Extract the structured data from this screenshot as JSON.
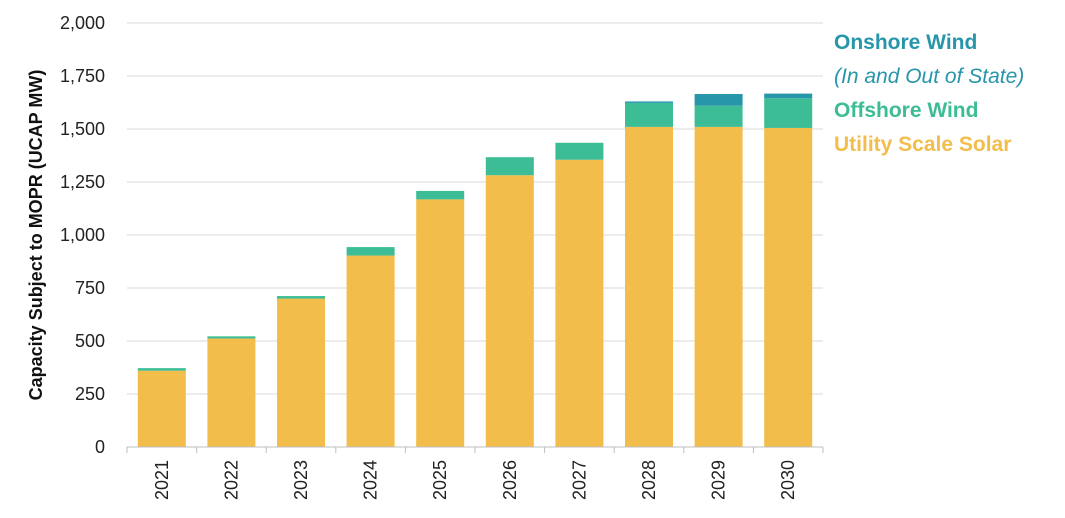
{
  "chart_data": {
    "type": "bar",
    "stacked": true,
    "categories": [
      "2021",
      "2022",
      "2023",
      "2024",
      "2025",
      "2026",
      "2027",
      "2028",
      "2029",
      "2030"
    ],
    "series": [
      {
        "name": "Utility Scale Solar",
        "color": "#F2BD4A",
        "values": [
          360,
          512,
          700,
          903,
          1168,
          1282,
          1355,
          1510,
          1510,
          1505
        ]
      },
      {
        "name": "Offshore Wind",
        "color": "#3CBD95",
        "values": [
          12,
          10,
          12,
          40,
          40,
          85,
          80,
          113,
          100,
          140
        ]
      },
      {
        "name": "Onshore Wind",
        "color": "#2796AA",
        "values": [
          0,
          0,
          0,
          0,
          0,
          0,
          0,
          7,
          55,
          22
        ]
      }
    ],
    "ylabel": "Capacity Subject to MOPR (UCAP MW)",
    "ylim": [
      0,
      2000
    ],
    "yticks": [
      "0",
      "250",
      "500",
      "750",
      "1,000",
      "1,250",
      "1,500",
      "1,750",
      "2,000"
    ],
    "yticks_values": [
      0,
      250,
      500,
      750,
      1000,
      1250,
      1500,
      1750,
      2000
    ],
    "grid": true,
    "legend_position": "right",
    "legend": {
      "onshore_label": "Onshore Wind",
      "onshore_note": "(In and Out of State)",
      "offshore_label": "Offshore Wind",
      "solar_label": "Utility Scale Solar",
      "onshore_color": "#2796AA",
      "offshore_color": "#3CBD95",
      "solar_color": "#F2BD4A"
    }
  }
}
